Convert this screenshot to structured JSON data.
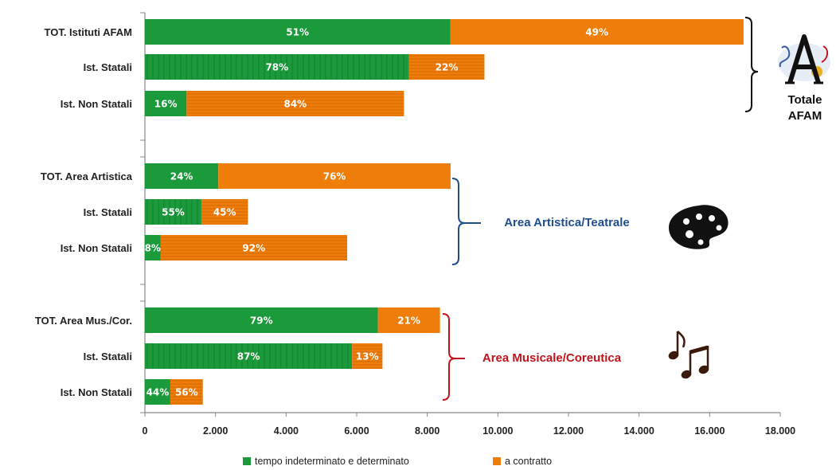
{
  "chart_data": {
    "type": "bar",
    "orientation": "horizontal",
    "stacked": true,
    "xlim": [
      0,
      18000
    ],
    "x_ticks": [
      "0",
      "2.000",
      "4.000",
      "6.000",
      "8.000",
      "10.000",
      "12.000",
      "14.000",
      "16.000",
      "18.000"
    ],
    "grid": false,
    "legend_position": "bottom",
    "categories": [
      "TOT. Istituti AFAM",
      "Ist. Statali",
      "Ist. Non Statali",
      "TOT. Area Artistica",
      "Ist. Statali",
      "Ist. Non Statali",
      "TOT. Area Mus./Cor.",
      "Ist. Statali",
      "Ist. Non Statali"
    ],
    "series": [
      {
        "name": "tempo indeterminato e determinato",
        "color": "#1a9a3a",
        "values": [
          8650,
          7480,
          1180,
          2080,
          1600,
          440,
          6600,
          5870,
          720
        ],
        "labels": [
          "51%",
          "78%",
          "16%",
          "24%",
          "55%",
          "8%",
          "79%",
          "87%",
          "44%"
        ]
      },
      {
        "name": "a contratto",
        "color": "#ef7d0a",
        "values": [
          8310,
          2140,
          6160,
          6580,
          1320,
          5290,
          1760,
          860,
          920
        ],
        "labels": [
          "49%",
          "22%",
          "84%",
          "76%",
          "45%",
          "92%",
          "21%",
          "13%",
          "56%"
        ]
      }
    ],
    "groups": [
      {
        "label_lines": [
          "Totale",
          "AFAM"
        ],
        "color": "#111111",
        "icon": "afam-logo-icon"
      },
      {
        "label": "Area Artistica/Teatrale",
        "color": "#1f4e8c",
        "icon": "palette-icon"
      },
      {
        "label": "Area Musicale/Coreutica",
        "color": "#c0141c",
        "icon": "music-notes-icon"
      }
    ]
  }
}
